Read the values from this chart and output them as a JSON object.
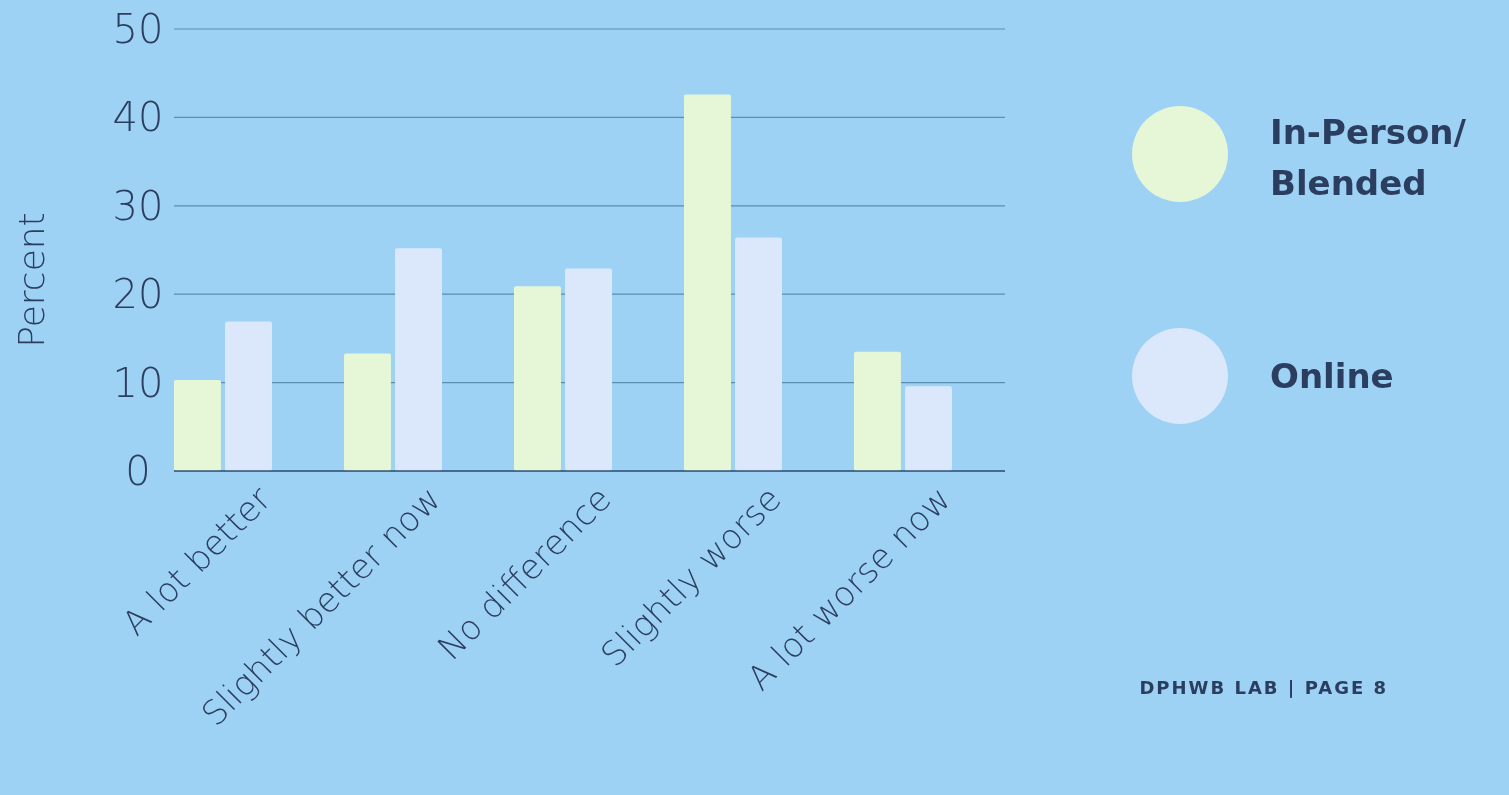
{
  "chart_data": {
    "type": "bar",
    "ylabel": "Percent",
    "categories": [
      "A lot better",
      "Slightly better now",
      "No difference",
      "Slightly worse",
      "A lot worse now"
    ],
    "series": [
      {
        "name": "In-Person/ Blended",
        "color": "#e6f7d7",
        "values": [
          10.3,
          13.3,
          20.9,
          42.6,
          13.5
        ]
      },
      {
        "name": "Online",
        "color": "#dbe8fb",
        "values": [
          16.9,
          25.2,
          22.9,
          26.4,
          9.6
        ]
      }
    ],
    "ylim": [
      0,
      50
    ],
    "yticks": [
      0,
      10,
      20,
      30,
      40,
      50
    ],
    "grid": "y",
    "legend": "right",
    "annotations": [
      "DPHWB LAB | PAGE 8"
    ]
  }
}
